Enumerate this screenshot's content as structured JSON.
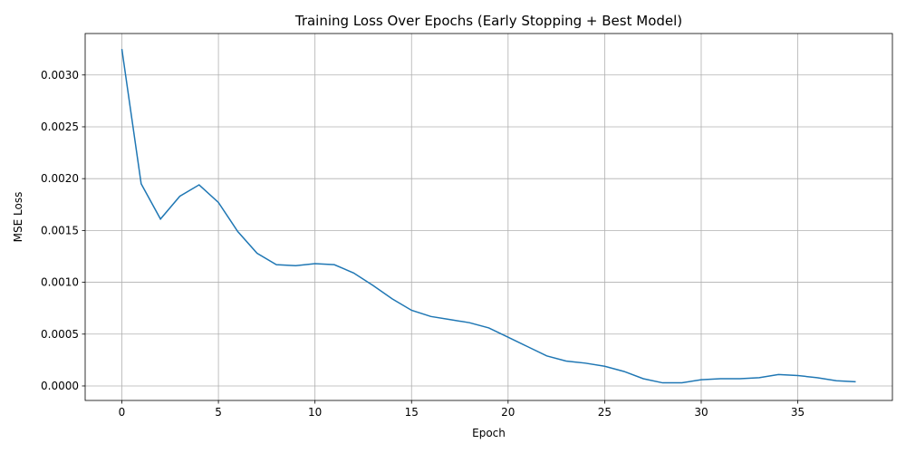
{
  "chart_data": {
    "type": "line",
    "title": "Training Loss Over Epochs (Early Stopping + Best Model)",
    "xlabel": "Epoch",
    "ylabel": "MSE Loss",
    "xlim": [
      -1.9,
      39.9
    ],
    "ylim": [
      -0.00014,
      0.0034
    ],
    "xticks": [
      0,
      5,
      10,
      15,
      20,
      25,
      30,
      35
    ],
    "xtick_labels": [
      "0",
      "5",
      "10",
      "15",
      "20",
      "25",
      "30",
      "35"
    ],
    "yticks": [
      0.0,
      0.0005,
      0.001,
      0.0015,
      0.002,
      0.0025,
      0.003
    ],
    "ytick_labels": [
      "0.0000",
      "0.0005",
      "0.0010",
      "0.0015",
      "0.0020",
      "0.0025",
      "0.0030"
    ],
    "grid": true,
    "line_color": "#1f77b4",
    "x": [
      0,
      1,
      2,
      3,
      4,
      5,
      6,
      7,
      8,
      9,
      10,
      11,
      12,
      13,
      14,
      15,
      16,
      17,
      18,
      19,
      20,
      21,
      22,
      23,
      24,
      25,
      26,
      27,
      28,
      29,
      30,
      31,
      32,
      33,
      34,
      35,
      36,
      37,
      38
    ],
    "y": [
      0.00325,
      0.00195,
      0.00161,
      0.00183,
      0.00194,
      0.00177,
      0.00149,
      0.00128,
      0.00117,
      0.00116,
      0.00118,
      0.00117,
      0.00109,
      0.00097,
      0.00084,
      0.00073,
      0.00067,
      0.00064,
      0.00061,
      0.00056,
      0.00047,
      0.00038,
      0.00029,
      0.00024,
      0.00022,
      0.00019,
      0.00014,
      7e-05,
      3e-05,
      3e-05,
      6e-05,
      7e-05,
      7e-05,
      8e-05,
      0.00011,
      0.0001,
      8e-05,
      5e-05,
      4e-05
    ]
  }
}
